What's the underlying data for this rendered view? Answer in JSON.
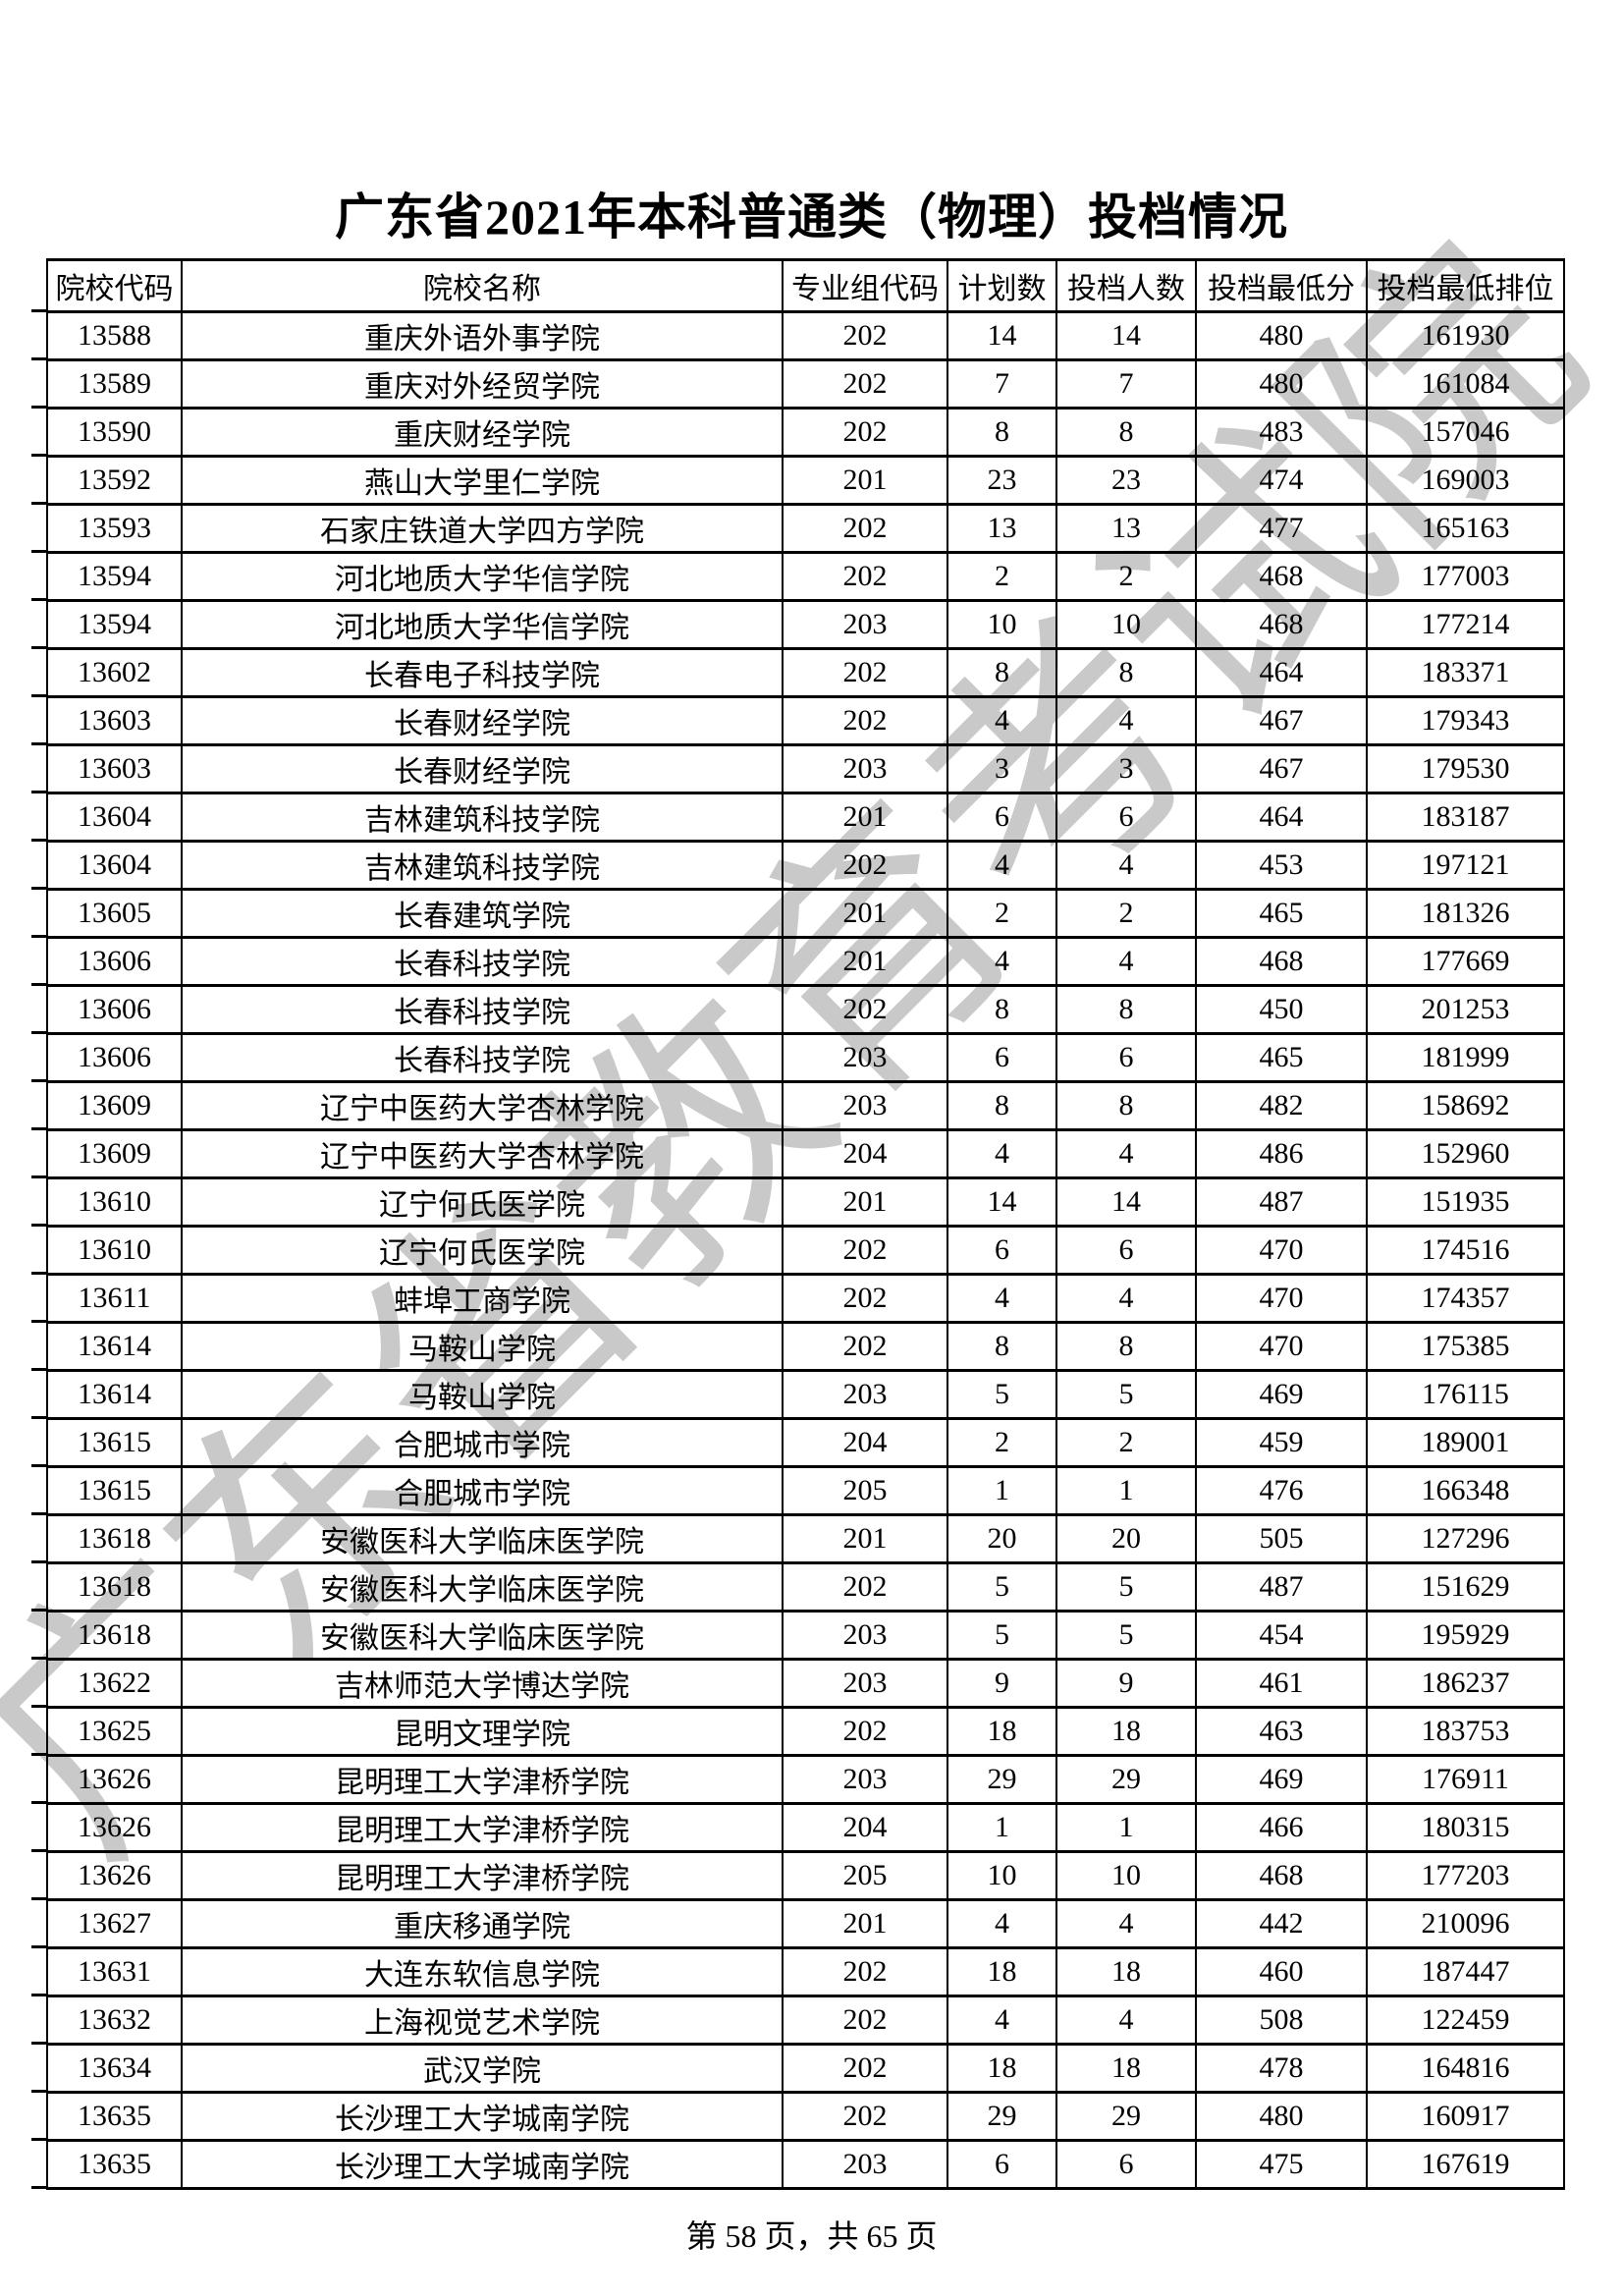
{
  "page": {
    "title": "广东省2021年本科普通类（物理）投档情况",
    "watermark": "广东省教育考试院",
    "footer": "第 58 页，共 65 页"
  },
  "colors": {
    "watermark": "#c9c9c9",
    "border": "#000000",
    "text": "#000000"
  },
  "table": {
    "columns": [
      "院校代码",
      "院校名称",
      "专业组代码",
      "计划数",
      "投档人数",
      "投档最低分",
      "投档最低排位"
    ],
    "rows": [
      [
        "13588",
        "重庆外语外事学院",
        "202",
        "14",
        "14",
        "480",
        "161930"
      ],
      [
        "13589",
        "重庆对外经贸学院",
        "202",
        "7",
        "7",
        "480",
        "161084"
      ],
      [
        "13590",
        "重庆财经学院",
        "202",
        "8",
        "8",
        "483",
        "157046"
      ],
      [
        "13592",
        "燕山大学里仁学院",
        "201",
        "23",
        "23",
        "474",
        "169003"
      ],
      [
        "13593",
        "石家庄铁道大学四方学院",
        "202",
        "13",
        "13",
        "477",
        "165163"
      ],
      [
        "13594",
        "河北地质大学华信学院",
        "202",
        "2",
        "2",
        "468",
        "177003"
      ],
      [
        "13594",
        "河北地质大学华信学院",
        "203",
        "10",
        "10",
        "468",
        "177214"
      ],
      [
        "13602",
        "长春电子科技学院",
        "202",
        "8",
        "8",
        "464",
        "183371"
      ],
      [
        "13603",
        "长春财经学院",
        "202",
        "4",
        "4",
        "467",
        "179343"
      ],
      [
        "13603",
        "长春财经学院",
        "203",
        "3",
        "3",
        "467",
        "179530"
      ],
      [
        "13604",
        "吉林建筑科技学院",
        "201",
        "6",
        "6",
        "464",
        "183187"
      ],
      [
        "13604",
        "吉林建筑科技学院",
        "202",
        "4",
        "4",
        "453",
        "197121"
      ],
      [
        "13605",
        "长春建筑学院",
        "201",
        "2",
        "2",
        "465",
        "181326"
      ],
      [
        "13606",
        "长春科技学院",
        "201",
        "4",
        "4",
        "468",
        "177669"
      ],
      [
        "13606",
        "长春科技学院",
        "202",
        "8",
        "8",
        "450",
        "201253"
      ],
      [
        "13606",
        "长春科技学院",
        "203",
        "6",
        "6",
        "465",
        "181999"
      ],
      [
        "13609",
        "辽宁中医药大学杏林学院",
        "203",
        "8",
        "8",
        "482",
        "158692"
      ],
      [
        "13609",
        "辽宁中医药大学杏林学院",
        "204",
        "4",
        "4",
        "486",
        "152960"
      ],
      [
        "13610",
        "辽宁何氏医学院",
        "201",
        "14",
        "14",
        "487",
        "151935"
      ],
      [
        "13610",
        "辽宁何氏医学院",
        "202",
        "6",
        "6",
        "470",
        "174516"
      ],
      [
        "13611",
        "蚌埠工商学院",
        "202",
        "4",
        "4",
        "470",
        "174357"
      ],
      [
        "13614",
        "马鞍山学院",
        "202",
        "8",
        "8",
        "470",
        "175385"
      ],
      [
        "13614",
        "马鞍山学院",
        "203",
        "5",
        "5",
        "469",
        "176115"
      ],
      [
        "13615",
        "合肥城市学院",
        "204",
        "2",
        "2",
        "459",
        "189001"
      ],
      [
        "13615",
        "合肥城市学院",
        "205",
        "1",
        "1",
        "476",
        "166348"
      ],
      [
        "13618",
        "安徽医科大学临床医学院",
        "201",
        "20",
        "20",
        "505",
        "127296"
      ],
      [
        "13618",
        "安徽医科大学临床医学院",
        "202",
        "5",
        "5",
        "487",
        "151629"
      ],
      [
        "13618",
        "安徽医科大学临床医学院",
        "203",
        "5",
        "5",
        "454",
        "195929"
      ],
      [
        "13622",
        "吉林师范大学博达学院",
        "203",
        "9",
        "9",
        "461",
        "186237"
      ],
      [
        "13625",
        "昆明文理学院",
        "202",
        "18",
        "18",
        "463",
        "183753"
      ],
      [
        "13626",
        "昆明理工大学津桥学院",
        "203",
        "29",
        "29",
        "469",
        "176911"
      ],
      [
        "13626",
        "昆明理工大学津桥学院",
        "204",
        "1",
        "1",
        "466",
        "180315"
      ],
      [
        "13626",
        "昆明理工大学津桥学院",
        "205",
        "10",
        "10",
        "468",
        "177203"
      ],
      [
        "13627",
        "重庆移通学院",
        "201",
        "4",
        "4",
        "442",
        "210096"
      ],
      [
        "13631",
        "大连东软信息学院",
        "202",
        "18",
        "18",
        "460",
        "187447"
      ],
      [
        "13632",
        "上海视觉艺术学院",
        "202",
        "4",
        "4",
        "508",
        "122459"
      ],
      [
        "13634",
        "武汉学院",
        "202",
        "18",
        "18",
        "478",
        "164816"
      ],
      [
        "13635",
        "长沙理工大学城南学院",
        "202",
        "29",
        "29",
        "480",
        "160917"
      ],
      [
        "13635",
        "长沙理工大学城南学院",
        "203",
        "6",
        "6",
        "475",
        "167619"
      ]
    ]
  }
}
